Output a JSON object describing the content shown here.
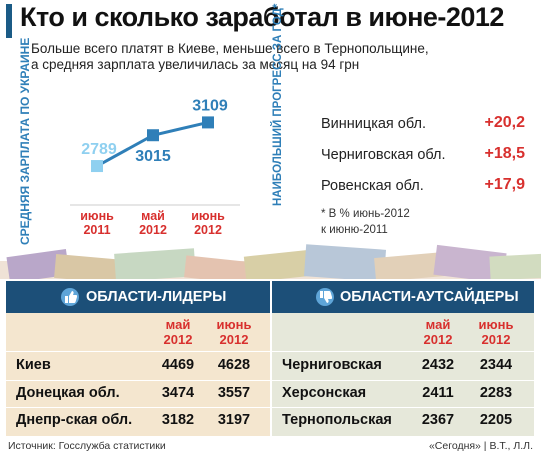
{
  "header": {
    "title": "Кто и сколько заработал в июне-2012",
    "subtitle_line1": "Больше всего платят в Киеве, меньше всего в Тернопольщине,",
    "subtitle_line2": "а средняя зарплата увеличилась за месяц на 94 грн"
  },
  "chart_data": {
    "type": "line",
    "categories": [
      "июнь 2011",
      "май 2012",
      "июнь 2012"
    ],
    "series": [
      {
        "values": [
          2789,
          3015,
          3109
        ]
      }
    ],
    "tick_labels": [
      {
        "line1": "июнь",
        "line2": "2011"
      },
      {
        "line1": "май",
        "line2": "2012"
      },
      {
        "line1": "июнь",
        "line2": "2012"
      }
    ],
    "ylabel": "СРЕДНЯЯ ЗАРПЛАТА ПО УКРАИНЕ",
    "ylim": [
      2650,
      3200
    ],
    "grid": false,
    "legend": "none",
    "line_color": "#2f7fb8",
    "point_colors": [
      "#8fd0f0",
      "#2f7fb8",
      "#2f7fb8"
    ],
    "label_color": "#2f7fb8"
  },
  "progress": {
    "vertical_label": "НАИБОЛЬШИЙ ПРОГРЕСС ЗА ГОД*",
    "items": [
      {
        "name": "Винницкая обл.",
        "value": "+20,2"
      },
      {
        "name": "Черниговская обл.",
        "value": "+18,5"
      },
      {
        "name": "Ровенская обл.",
        "value": "+17,9"
      }
    ],
    "note_line1": "* В % июнь-2012",
    "note_line2": "к июню-2011"
  },
  "leaders": {
    "title": "ОБЛАСТИ-ЛИДЕРЫ",
    "col1": {
      "line1": "май",
      "line2": "2012"
    },
    "col2": {
      "line1": "июнь",
      "line2": "2012"
    },
    "rows": [
      {
        "name": "Киев",
        "may": "4469",
        "june": "4628"
      },
      {
        "name": "Донецкая обл.",
        "may": "3474",
        "june": "3557"
      },
      {
        "name": "Днепр-ская обл.",
        "may": "3182",
        "june": "3197"
      }
    ]
  },
  "outsiders": {
    "title": "ОБЛАСТИ-АУТСАЙДЕРЫ",
    "col1": {
      "line1": "май",
      "line2": "2012"
    },
    "col2": {
      "line1": "июнь",
      "line2": "2012"
    },
    "rows": [
      {
        "name": "Черниговская",
        "may": "2432",
        "june": "2344"
      },
      {
        "name": "Херсонская",
        "may": "2411",
        "june": "2283"
      },
      {
        "name": "Тернопольская",
        "may": "2367",
        "june": "2205"
      }
    ]
  },
  "footer": {
    "source": "Источник:  Госслужба статистики",
    "credit": "«Сегодня» | В.Т., Л.Л."
  },
  "colors": {
    "accent_blue": "#2f7fb8",
    "dark_blue": "#1c4f78",
    "red": "#d8302e",
    "leaders_bg": "#f4e6cf",
    "outsiders_bg": "#e6e8da"
  }
}
